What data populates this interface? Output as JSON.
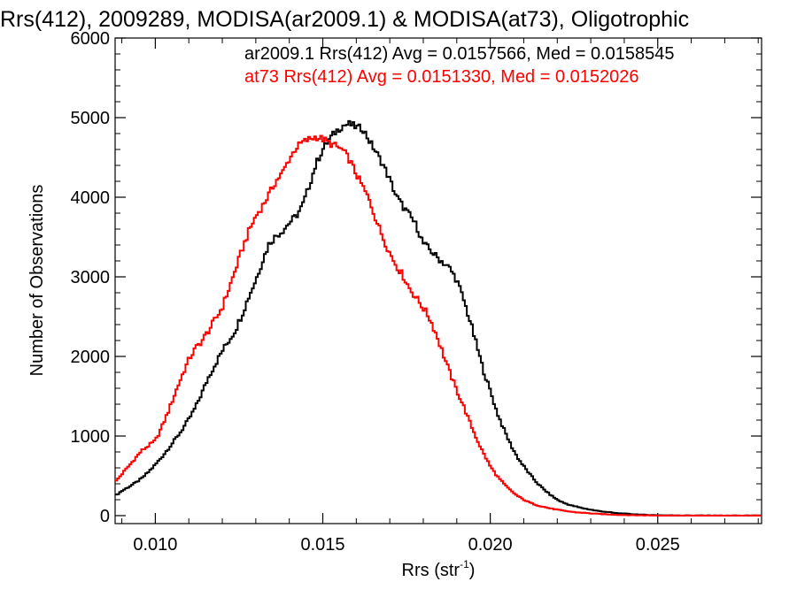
{
  "chart_data": {
    "type": "line",
    "title": "Rrs(412), 2009289, MODISA(ar2009.1) & MODISA(at73), Oligotrophic",
    "xlabel": "Rrs (str",
    "xlabel_sup": "-1",
    "xlabel_close": ")",
    "ylabel": "Number of Observations",
    "xlim": [
      0.0088,
      0.0281
    ],
    "ylim": [
      -100,
      6000
    ],
    "xticks": [
      "0.010",
      "0.015",
      "0.020",
      "0.025"
    ],
    "xtick_values": [
      0.01,
      0.015,
      0.02,
      0.025
    ],
    "yticks": [
      "0",
      "1000",
      "2000",
      "3000",
      "4000",
      "5000",
      "6000"
    ],
    "ytick_values": [
      0,
      1000,
      2000,
      3000,
      4000,
      5000,
      6000
    ],
    "grid": false,
    "legend_placement": "top-right",
    "series": [
      {
        "name": "ar2009.1",
        "annotation": "ar2009.1 Rrs(412) Avg = 0.0157566, Med = 0.0158545",
        "color": "#000000",
        "step": true,
        "x": [
          0.0088,
          0.009,
          0.0092,
          0.0094,
          0.0096,
          0.0098,
          0.01,
          0.0102,
          0.0104,
          0.0106,
          0.0108,
          0.011,
          0.0112,
          0.0114,
          0.0116,
          0.0118,
          0.012,
          0.0122,
          0.0124,
          0.0126,
          0.0128,
          0.013,
          0.0132,
          0.0134,
          0.0136,
          0.0138,
          0.014,
          0.0142,
          0.0144,
          0.0146,
          0.0148,
          0.015,
          0.0152,
          0.0154,
          0.0156,
          0.0158,
          0.016,
          0.0162,
          0.0164,
          0.0166,
          0.0168,
          0.017,
          0.0172,
          0.0174,
          0.0176,
          0.0178,
          0.018,
          0.0182,
          0.0184,
          0.0186,
          0.0188,
          0.019,
          0.0192,
          0.0194,
          0.0196,
          0.0198,
          0.02,
          0.0202,
          0.0204,
          0.0206,
          0.0208,
          0.021,
          0.0212,
          0.0214,
          0.0216,
          0.0218,
          0.022,
          0.0222,
          0.0224,
          0.0226,
          0.0228,
          0.023,
          0.0232,
          0.0234,
          0.0236,
          0.0238,
          0.024,
          0.0242,
          0.0244,
          0.0246,
          0.0248,
          0.025,
          0.0255,
          0.026,
          0.0265,
          0.027,
          0.0275,
          0.0281
        ],
        "values": [
          250,
          310,
          360,
          410,
          470,
          550,
          640,
          740,
          850,
          960,
          1080,
          1210,
          1360,
          1550,
          1750,
          1910,
          2070,
          2200,
          2340,
          2540,
          2760,
          2960,
          3200,
          3420,
          3510,
          3580,
          3680,
          3760,
          3900,
          4150,
          4420,
          4600,
          4730,
          4830,
          4900,
          4920,
          4880,
          4860,
          4700,
          4560,
          4410,
          4220,
          4010,
          3880,
          3770,
          3640,
          3420,
          3340,
          3250,
          3180,
          3100,
          2960,
          2720,
          2440,
          2130,
          1820,
          1570,
          1300,
          1090,
          900,
          740,
          620,
          510,
          410,
          330,
          260,
          200,
          160,
          130,
          110,
          90,
          75,
          60,
          50,
          40,
          30,
          25,
          20,
          15,
          10,
          8,
          5,
          3,
          2,
          1,
          0,
          0,
          0
        ]
      },
      {
        "name": "at73",
        "annotation": "at73 Rrs(412) Avg = 0.0151330, Med = 0.0152026",
        "color": "#ff0000",
        "step": true,
        "x": [
          0.0088,
          0.009,
          0.0092,
          0.0094,
          0.0096,
          0.0098,
          0.01,
          0.0102,
          0.0104,
          0.0106,
          0.0108,
          0.011,
          0.0112,
          0.0114,
          0.0116,
          0.0118,
          0.012,
          0.0122,
          0.0124,
          0.0126,
          0.0128,
          0.013,
          0.0132,
          0.0134,
          0.0136,
          0.0138,
          0.014,
          0.0142,
          0.0144,
          0.0146,
          0.0148,
          0.015,
          0.0152,
          0.0154,
          0.0156,
          0.0158,
          0.016,
          0.0162,
          0.0164,
          0.0166,
          0.0168,
          0.017,
          0.0172,
          0.0174,
          0.0176,
          0.0178,
          0.018,
          0.0182,
          0.0184,
          0.0186,
          0.0188,
          0.019,
          0.0192,
          0.0194,
          0.0196,
          0.0198,
          0.02,
          0.0202,
          0.0204,
          0.0206,
          0.0208,
          0.021,
          0.0212,
          0.0214,
          0.0216,
          0.0218,
          0.022,
          0.0222,
          0.0224,
          0.0226,
          0.0228,
          0.023,
          0.0232,
          0.0234,
          0.0236,
          0.0238,
          0.024,
          0.0242,
          0.0244,
          0.0246,
          0.0248,
          0.025,
          0.0255,
          0.026,
          0.0265,
          0.027,
          0.0275,
          0.0281
        ],
        "values": [
          420,
          520,
          620,
          720,
          820,
          880,
          940,
          1120,
          1320,
          1550,
          1760,
          1960,
          2100,
          2200,
          2330,
          2470,
          2620,
          2850,
          3100,
          3350,
          3580,
          3760,
          3890,
          4040,
          4200,
          4310,
          4480,
          4620,
          4690,
          4730,
          4760,
          4730,
          4680,
          4640,
          4590,
          4470,
          4290,
          4130,
          3950,
          3710,
          3490,
          3300,
          3140,
          3010,
          2850,
          2730,
          2610,
          2470,
          2270,
          2020,
          1790,
          1570,
          1380,
          1160,
          960,
          780,
          620,
          500,
          400,
          320,
          250,
          200,
          160,
          130,
          110,
          90,
          75,
          60,
          50,
          40,
          35,
          28,
          22,
          18,
          14,
          10,
          8,
          6,
          5,
          4,
          3,
          2,
          1,
          1,
          0,
          0,
          0,
          0
        ]
      }
    ]
  }
}
